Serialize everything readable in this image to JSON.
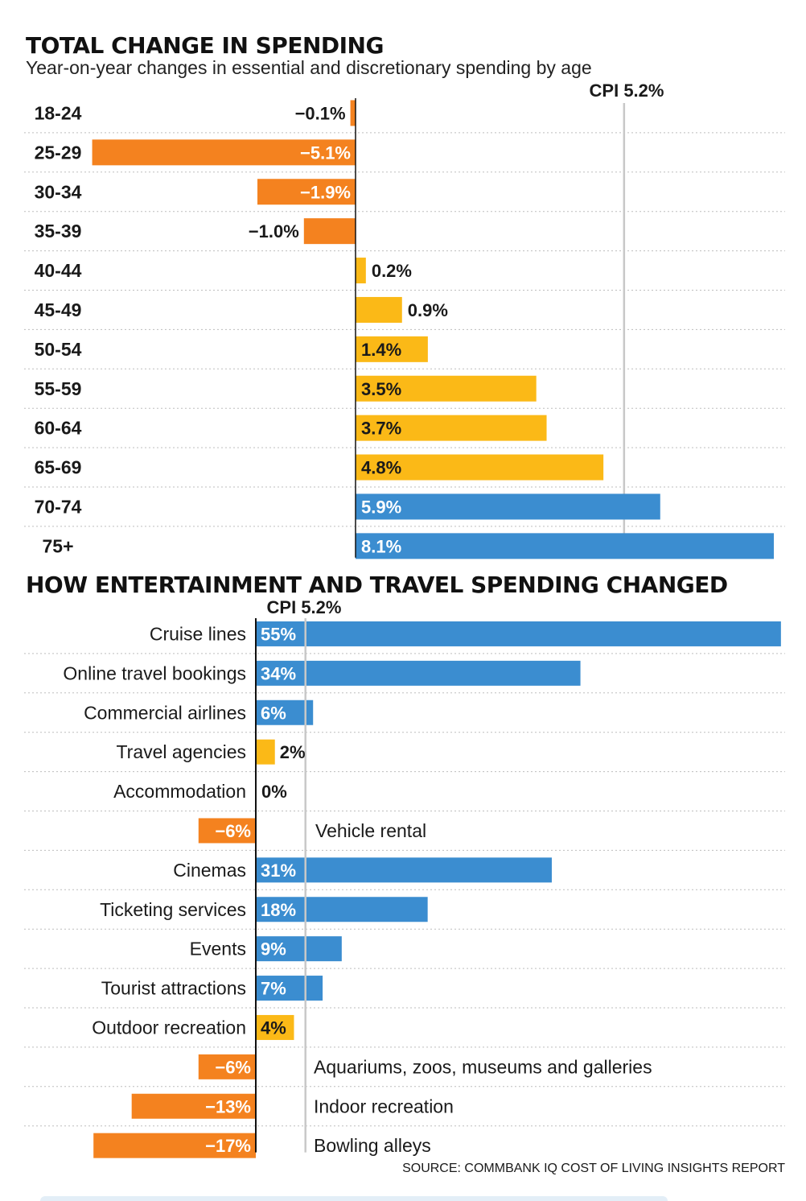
{
  "colors": {
    "orange": "#f4821f",
    "yellow": "#fbb917",
    "blue": "#3b8dd0",
    "axis": "#111111",
    "cpi_line": "#c8c8c8",
    "grid": "#bdbdbd"
  },
  "chart_data": [
    {
      "type": "bar",
      "orientation": "horizontal",
      "title": "TOTAL CHANGE IN SPENDING",
      "subtitle": "Year-on-year changes in essential and discretionary spending by age",
      "reference_line": {
        "label": "CPI 5.2%",
        "value": 5.2
      },
      "xlim": [
        -5.2,
        8.3
      ],
      "categories": [
        "18-24",
        "25-29",
        "30-34",
        "35-39",
        "40-44",
        "45-49",
        "50-54",
        "55-59",
        "60-64",
        "65-69",
        "70-74",
        "75+"
      ],
      "values": [
        -0.1,
        -5.1,
        -1.9,
        -1.0,
        0.2,
        0.9,
        1.4,
        3.5,
        3.7,
        4.8,
        5.9,
        8.1
      ],
      "value_labels": [
        "−0.1%",
        "−5.1%",
        "−1.9%",
        "−1.0%",
        "0.2%",
        "0.9%",
        "1.4%",
        "3.5%",
        "3.7%",
        "4.8%",
        "5.9%",
        "8.1%"
      ]
    },
    {
      "type": "bar",
      "orientation": "horizontal",
      "title": "HOW ENTERTAINMENT AND TRAVEL SPENDING CHANGED",
      "reference_line": {
        "label": "CPI 5.2%",
        "value": 5.2
      },
      "xlim": [
        -17.5,
        55
      ],
      "categories": [
        "Cruise lines",
        "Online travel bookings",
        "Commercial airlines",
        "Travel agencies",
        "Accommodation",
        "Vehicle rental",
        "Cinemas",
        "Ticketing services",
        "Events",
        "Tourist attractions",
        "Outdoor recreation",
        "Aquariums, zoos, museums and galleries",
        "Indoor recreation",
        "Bowling alleys"
      ],
      "values": [
        55,
        34,
        6,
        2,
        0,
        -6,
        31,
        18,
        9,
        7,
        4,
        -6,
        -13,
        -17
      ],
      "value_labels": [
        "55%",
        "34%",
        "6%",
        "2%",
        "0%",
        "−6%",
        "31%",
        "18%",
        "9%",
        "7%",
        "4%",
        "−6%",
        "−13%",
        "−17%"
      ],
      "source": "SOURCE: COMMBANK IQ COST OF LIVING INSIGHTS REPORT"
    }
  ]
}
